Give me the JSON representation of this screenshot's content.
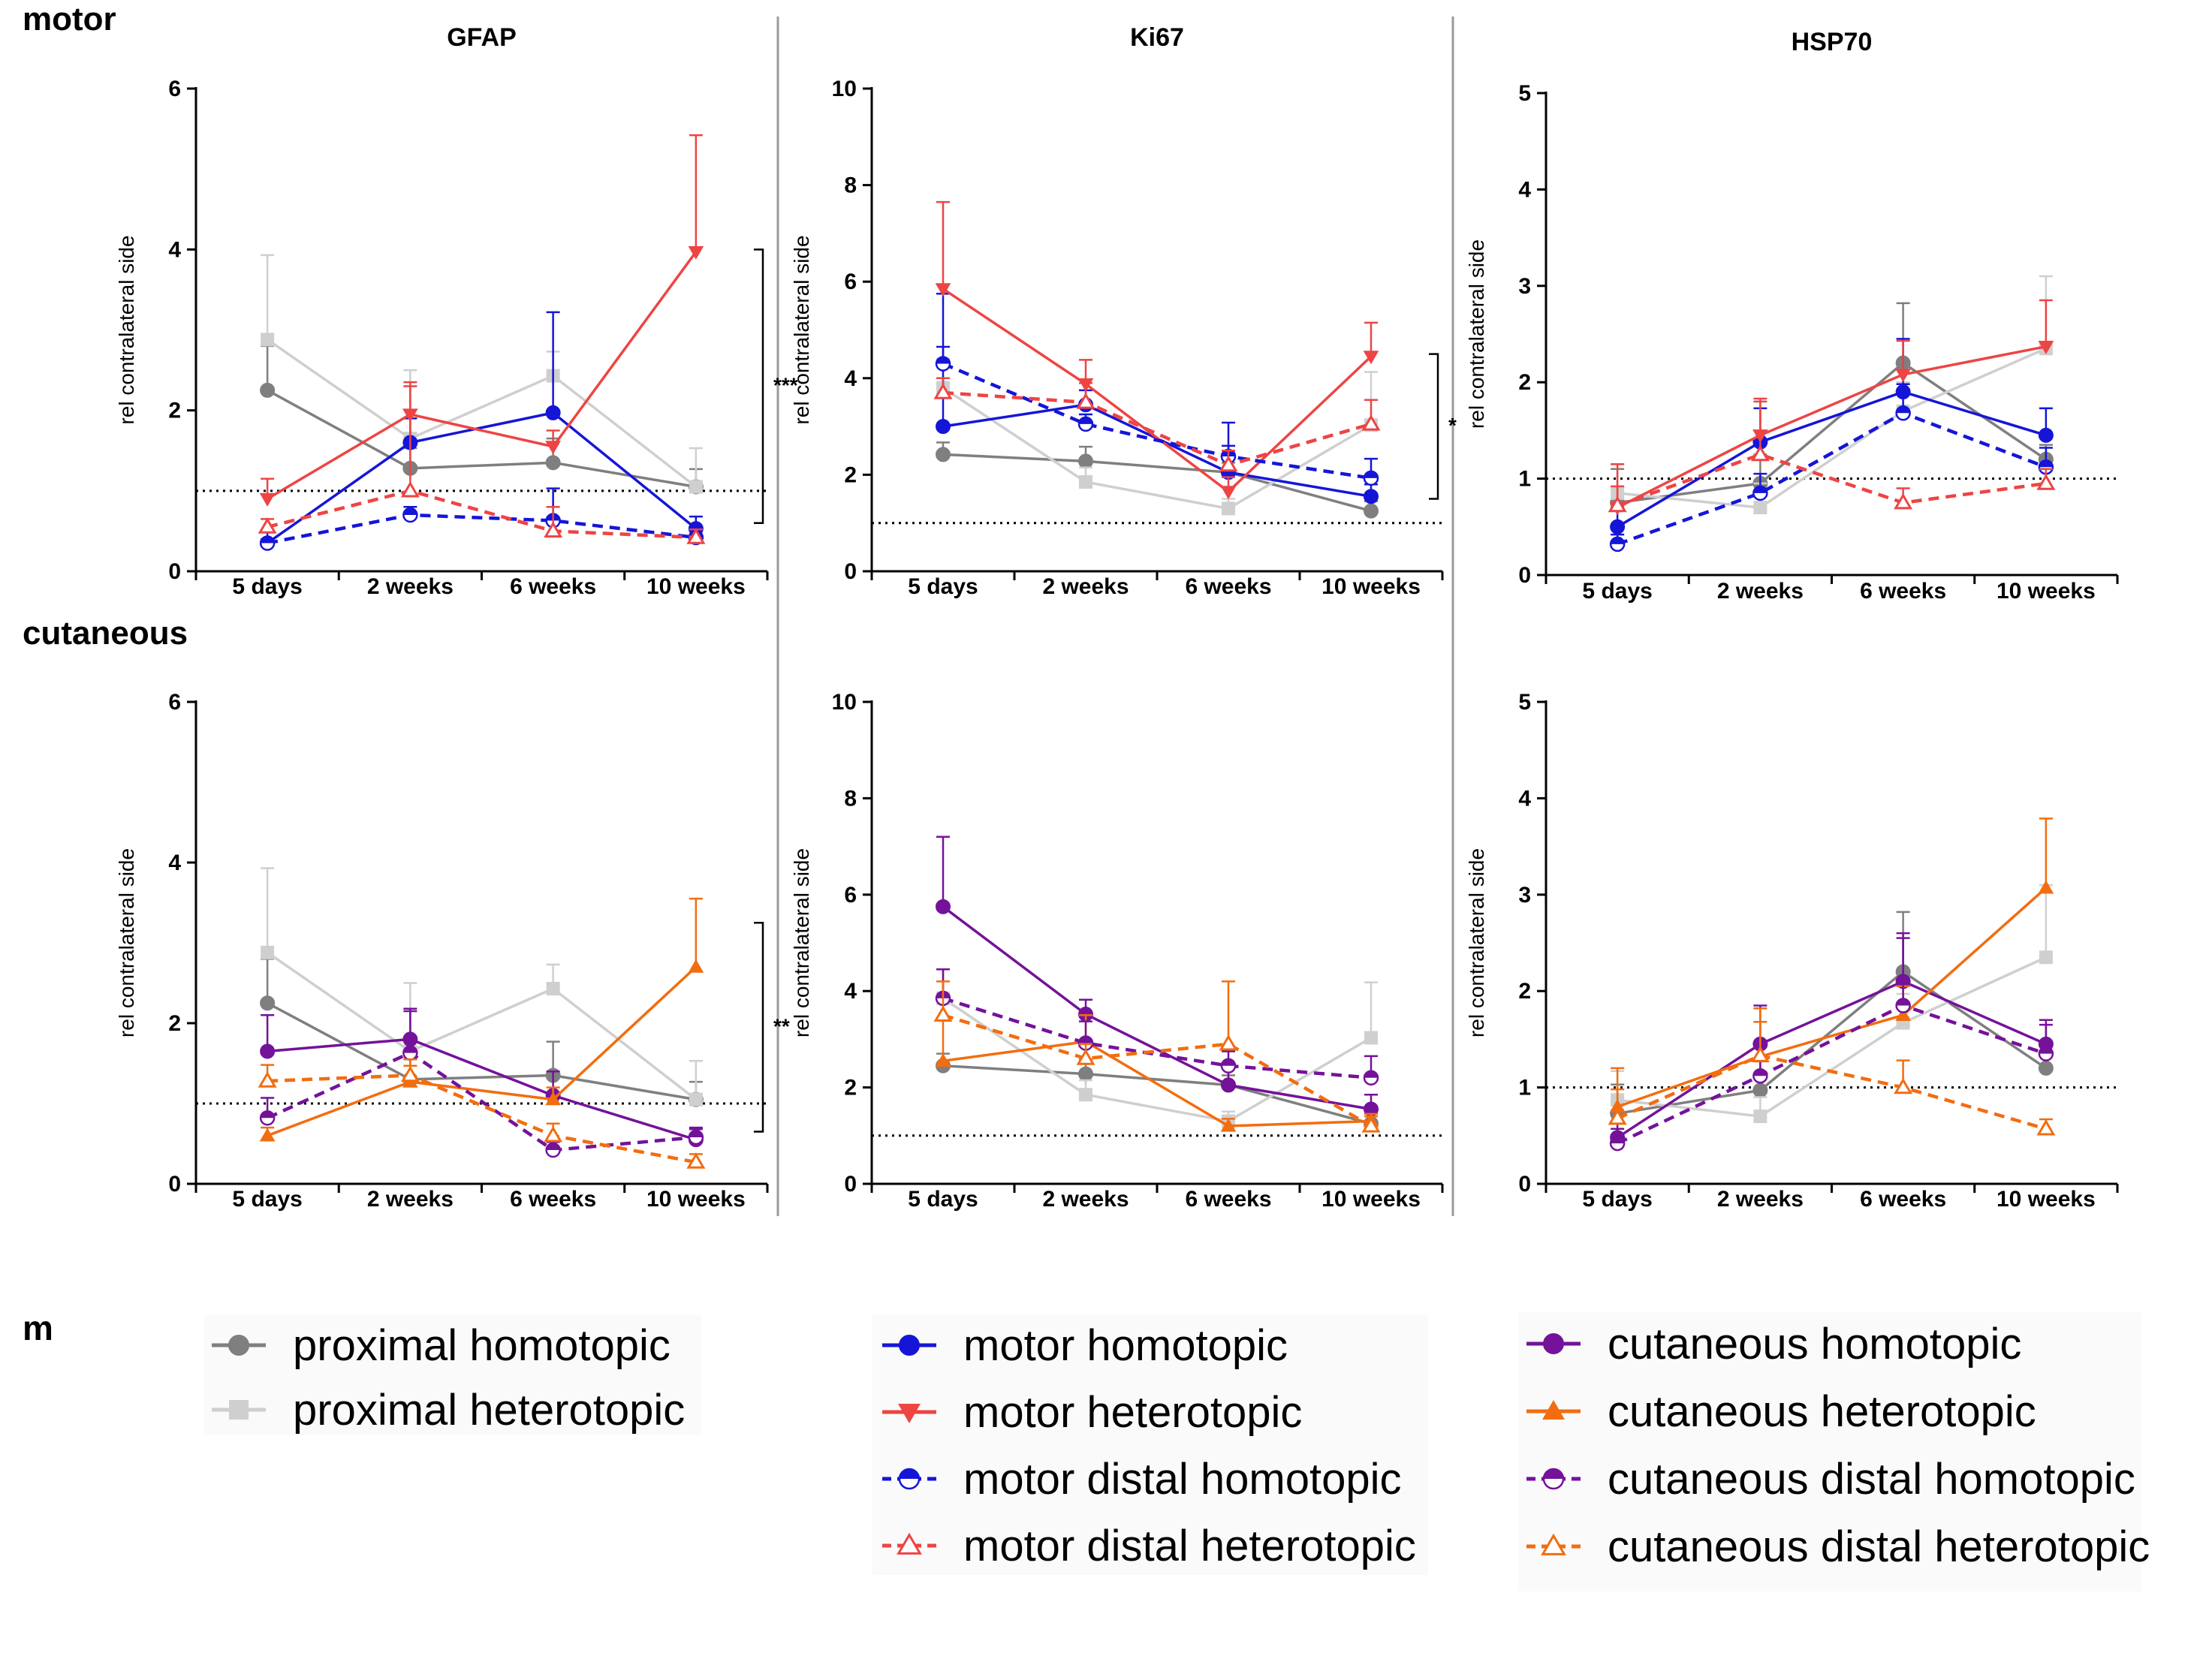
{
  "figure": {
    "row_titles": [
      "motor",
      "cutaneous"
    ],
    "legend_stub": "m"
  },
  "colors": {
    "proximal homotopic": "#7f7f7f",
    "proximal heterotopic": "#cfcfcf",
    "motor homotopic": "#1515d8",
    "motor heterotopic": "#ee4444",
    "motor distal homotopic": "#1515d8",
    "motor distal heterotopic": "#ee4444",
    "cutaneous homotopic": "#74129a",
    "cutaneous heterotopic": "#f26d10",
    "cutaneous distal homotopic": "#74129a",
    "cutaneous distal heterotopic": "#f26d10"
  },
  "legend": {
    "groups": [
      [
        {
          "name": "proximal homotopic",
          "marker": "circle",
          "dash": false
        },
        {
          "name": "proximal heterotopic",
          "marker": "square",
          "dash": false
        }
      ],
      [
        {
          "name": "motor homotopic",
          "marker": "circle",
          "dash": false
        },
        {
          "name": "motor heterotopic",
          "marker": "tri-down",
          "dash": false
        },
        {
          "name": "motor distal homotopic",
          "marker": "half-circle",
          "dash": true
        },
        {
          "name": "motor distal heterotopic",
          "marker": "tri-up-open",
          "dash": true
        }
      ],
      [
        {
          "name": "cutaneous homotopic",
          "marker": "circle",
          "dash": false
        },
        {
          "name": "cutaneous heterotopic",
          "marker": "tri-up",
          "dash": false
        },
        {
          "name": "cutaneous distal homotopic",
          "marker": "half-circle",
          "dash": true
        },
        {
          "name": "cutaneous distal heterotopic",
          "marker": "tri-up-open",
          "dash": true
        }
      ]
    ]
  },
  "chart_data": [
    {
      "type": "line",
      "row": "motor",
      "title": "GFAP",
      "categories": [
        "5 days",
        "2 weeks",
        "6 weeks",
        "10 weeks"
      ],
      "ylabel": "rel contralateral side",
      "ylim": [
        0,
        6
      ],
      "yticks": [
        0,
        2,
        4,
        6
      ],
      "reference_line": 1,
      "significance": {
        "label": "***",
        "y_range": [
          0.6,
          4.0
        ]
      },
      "series": [
        {
          "name": "proximal homotopic",
          "marker": "circle",
          "dash": false,
          "values": [
            2.25,
            1.28,
            1.35,
            1.05
          ],
          "errors": [
            0.55,
            0.25,
            0.3,
            0.22
          ]
        },
        {
          "name": "proximal heterotopic",
          "marker": "square",
          "dash": false,
          "values": [
            2.88,
            1.65,
            2.43,
            1.05
          ],
          "errors": [
            1.05,
            0.85,
            0.3,
            0.48
          ]
        },
        {
          "name": "motor homotopic",
          "marker": "circle",
          "dash": false,
          "values": [
            0.35,
            1.6,
            1.97,
            0.53
          ],
          "errors": [
            0.15,
            0.3,
            1.25,
            0.15
          ]
        },
        {
          "name": "motor heterotopic",
          "marker": "tri-down",
          "dash": false,
          "values": [
            0.9,
            1.95,
            1.55,
            3.97
          ],
          "errors": [
            0.25,
            0.35,
            0.2,
            1.45
          ]
        },
        {
          "name": "motor distal homotopic",
          "marker": "half-circle",
          "dash": true,
          "values": [
            0.35,
            0.7,
            0.63,
            0.42
          ],
          "errors": [
            0.05,
            0.1,
            0.4,
            0.1
          ]
        },
        {
          "name": "motor distal heterotopic",
          "marker": "tri-up-open",
          "dash": true,
          "values": [
            0.55,
            1.0,
            0.5,
            0.42
          ],
          "errors": [
            0.1,
            1.35,
            0.3,
            0.1
          ]
        }
      ]
    },
    {
      "type": "line",
      "row": "motor",
      "title": "Ki67",
      "categories": [
        "5 days",
        "2 weeks",
        "6 weeks",
        "10 weeks"
      ],
      "ylabel": "rel contralateral side",
      "ylim": [
        0,
        10
      ],
      "yticks": [
        0,
        2,
        4,
        6,
        8,
        10
      ],
      "reference_line": 1,
      "significance": {
        "label": "*",
        "y_range": [
          1.5,
          4.5
        ]
      },
      "series": [
        {
          "name": "proximal homotopic",
          "marker": "circle",
          "dash": false,
          "values": [
            2.42,
            2.28,
            2.05,
            1.25
          ],
          "errors": [
            0.25,
            0.3,
            0.2,
            0.2
          ]
        },
        {
          "name": "proximal heterotopic",
          "marker": "square",
          "dash": false,
          "values": [
            3.8,
            1.85,
            1.3,
            3.03
          ],
          "errors": [
            0.6,
            0.3,
            0.2,
            1.1
          ]
        },
        {
          "name": "motor homotopic",
          "marker": "circle",
          "dash": false,
          "values": [
            3.0,
            3.45,
            2.05,
            1.55
          ],
          "errors": [
            2.75,
            0.3,
            0.55,
            0.25
          ]
        },
        {
          "name": "motor heterotopic",
          "marker": "tri-down",
          "dash": false,
          "values": [
            5.85,
            3.88,
            1.65,
            4.45
          ],
          "errors": [
            1.8,
            0.5,
            0.3,
            0.7
          ]
        },
        {
          "name": "motor distal homotopic",
          "marker": "half-circle",
          "dash": true,
          "values": [
            4.3,
            3.05,
            2.38,
            1.93
          ],
          "errors": [
            0.35,
            0.2,
            0.7,
            0.4
          ]
        },
        {
          "name": "motor distal heterotopic",
          "marker": "tri-up-open",
          "dash": true,
          "values": [
            3.7,
            3.5,
            2.2,
            3.05
          ],
          "errors": [
            0.3,
            0.4,
            0.3,
            0.5
          ]
        }
      ]
    },
    {
      "type": "line",
      "row": "motor",
      "title": "HSP70",
      "categories": [
        "5 days",
        "2 weeks",
        "6 weeks",
        "10 weeks"
      ],
      "ylabel": "rel contralateral side",
      "ylim": [
        0,
        5
      ],
      "yticks": [
        0,
        1,
        2,
        3,
        4,
        5
      ],
      "reference_line": 1,
      "series": [
        {
          "name": "proximal homotopic",
          "marker": "circle",
          "dash": false,
          "values": [
            0.75,
            0.95,
            2.2,
            1.2
          ],
          "errors": [
            0.35,
            0.3,
            0.62,
            0.15
          ]
        },
        {
          "name": "proximal heterotopic",
          "marker": "square",
          "dash": false,
          "values": [
            0.85,
            0.7,
            1.7,
            2.35
          ],
          "errors": [
            0.3,
            0.25,
            0.3,
            0.75
          ]
        },
        {
          "name": "motor homotopic",
          "marker": "circle",
          "dash": false,
          "values": [
            0.5,
            1.38,
            1.9,
            1.45
          ],
          "errors": [
            0.2,
            0.35,
            0.55,
            0.28
          ]
        },
        {
          "name": "motor heterotopic",
          "marker": "tri-down",
          "dash": false,
          "values": [
            0.7,
            1.45,
            2.08,
            2.37
          ],
          "errors": [
            0.45,
            0.38,
            0.35,
            0.48
          ]
        },
        {
          "name": "motor distal homotopic",
          "marker": "half-circle",
          "dash": true,
          "values": [
            0.32,
            0.85,
            1.68,
            1.12
          ],
          "errors": [
            0.1,
            0.2,
            0.3,
            0.2
          ]
        },
        {
          "name": "motor distal heterotopic",
          "marker": "tri-up-open",
          "dash": true,
          "values": [
            0.72,
            1.25,
            0.75,
            0.95
          ],
          "errors": [
            0.2,
            0.55,
            0.15,
            0.15
          ]
        }
      ]
    },
    {
      "type": "line",
      "row": "cutaneous",
      "title": "",
      "categories": [
        "5 days",
        "2 weeks",
        "6 weeks",
        "10 weeks"
      ],
      "ylabel": "rel contralateral side",
      "ylim": [
        0,
        6
      ],
      "yticks": [
        0,
        2,
        4,
        6
      ],
      "reference_line": 1,
      "significance": {
        "label": "**",
        "y_range": [
          0.65,
          3.25
        ]
      },
      "series": [
        {
          "name": "proximal homotopic",
          "marker": "circle",
          "dash": false,
          "values": [
            2.25,
            1.3,
            1.35,
            1.05
          ],
          "errors": [
            0.55,
            0.25,
            0.42,
            0.22
          ]
        },
        {
          "name": "proximal heterotopic",
          "marker": "square",
          "dash": false,
          "values": [
            2.88,
            1.65,
            2.43,
            1.05
          ],
          "errors": [
            1.05,
            0.85,
            0.3,
            0.48
          ]
        },
        {
          "name": "cutaneous homotopic",
          "marker": "circle",
          "dash": false,
          "values": [
            1.65,
            1.8,
            1.1,
            0.55
          ],
          "errors": [
            0.45,
            0.35,
            0.3,
            0.15
          ]
        },
        {
          "name": "cutaneous heterotopic",
          "marker": "tri-up",
          "dash": false,
          "values": [
            0.6,
            1.27,
            1.05,
            2.7
          ],
          "errors": [
            0.1,
            0.2,
            0.15,
            0.85
          ]
        },
        {
          "name": "cutaneous distal homotopic",
          "marker": "half-circle",
          "dash": true,
          "values": [
            0.82,
            1.63,
            0.42,
            0.58
          ],
          "errors": [
            0.25,
            0.55,
            0.1,
            0.1
          ]
        },
        {
          "name": "cutaneous distal heterotopic",
          "marker": "tri-up-open",
          "dash": true,
          "values": [
            1.28,
            1.35,
            0.6,
            0.27
          ],
          "errors": [
            0.2,
            0.2,
            0.15,
            0.1
          ]
        }
      ]
    },
    {
      "type": "line",
      "row": "cutaneous",
      "title": "",
      "categories": [
        "5 days",
        "2 weeks",
        "6 weeks",
        "10 weeks"
      ],
      "ylabel": "rel contralateral side",
      "ylim": [
        0,
        10
      ],
      "yticks": [
        0,
        2,
        4,
        6,
        8,
        10
      ],
      "reference_line": 1,
      "series": [
        {
          "name": "proximal homotopic",
          "marker": "circle",
          "dash": false,
          "values": [
            2.45,
            2.28,
            2.05,
            1.25
          ],
          "errors": [
            0.25,
            0.3,
            0.2,
            0.2
          ]
        },
        {
          "name": "proximal heterotopic",
          "marker": "square",
          "dash": false,
          "values": [
            3.85,
            1.85,
            1.3,
            3.03
          ],
          "errors": [
            0.6,
            0.3,
            0.2,
            1.15
          ]
        },
        {
          "name": "cutaneous homotopic",
          "marker": "circle",
          "dash": false,
          "values": [
            5.75,
            3.52,
            2.05,
            1.55
          ],
          "errors": [
            1.45,
            0.3,
            0.35,
            0.3
          ]
        },
        {
          "name": "cutaneous heterotopic",
          "marker": "tri-up",
          "dash": false,
          "values": [
            2.55,
            2.95,
            1.2,
            1.3
          ],
          "errors": [
            1.9,
            0.55,
            0.15,
            0.15
          ]
        },
        {
          "name": "cutaneous distal homotopic",
          "marker": "half-circle",
          "dash": true,
          "values": [
            3.85,
            2.92,
            2.45,
            2.2
          ],
          "errors": [
            0.6,
            0.45,
            0.3,
            0.45
          ]
        },
        {
          "name": "cutaneous distal heterotopic",
          "marker": "tri-up-open",
          "dash": true,
          "values": [
            3.5,
            2.6,
            2.9,
            1.2
          ],
          "errors": [
            0.7,
            0.3,
            1.3,
            0.2
          ]
        }
      ]
    },
    {
      "type": "line",
      "row": "cutaneous",
      "title": "",
      "categories": [
        "5 days",
        "2 weeks",
        "6 weeks",
        "10 weeks"
      ],
      "ylabel": "rel contralateral side",
      "ylim": [
        0,
        5
      ],
      "yticks": [
        0,
        1,
        2,
        3,
        4,
        5
      ],
      "reference_line": 1,
      "series": [
        {
          "name": "proximal homotopic",
          "marker": "circle",
          "dash": false,
          "values": [
            0.73,
            0.97,
            2.2,
            1.2
          ],
          "errors": [
            0.3,
            0.3,
            0.62,
            0.15
          ]
        },
        {
          "name": "proximal heterotopic",
          "marker": "square",
          "dash": false,
          "values": [
            0.87,
            0.7,
            1.67,
            2.35
          ],
          "errors": [
            0.3,
            0.2,
            0.3,
            0.75
          ]
        },
        {
          "name": "cutaneous homotopic",
          "marker": "circle",
          "dash": false,
          "values": [
            0.48,
            1.45,
            2.1,
            1.45
          ],
          "errors": [
            0.15,
            0.4,
            0.5,
            0.25
          ]
        },
        {
          "name": "cutaneous heterotopic",
          "marker": "tri-up",
          "dash": false,
          "values": [
            0.8,
            1.32,
            1.75,
            3.07
          ],
          "errors": [
            0.4,
            0.5,
            0.3,
            0.72
          ]
        },
        {
          "name": "cutaneous distal homotopic",
          "marker": "half-circle",
          "dash": true,
          "values": [
            0.42,
            1.12,
            1.85,
            1.35
          ],
          "errors": [
            0.15,
            0.3,
            0.7,
            0.3
          ]
        },
        {
          "name": "cutaneous distal heterotopic",
          "marker": "tri-up-open",
          "dash": true,
          "values": [
            0.68,
            1.33,
            1.0,
            0.57
          ],
          "errors": [
            0.3,
            0.35,
            0.28,
            0.1
          ]
        }
      ]
    }
  ]
}
